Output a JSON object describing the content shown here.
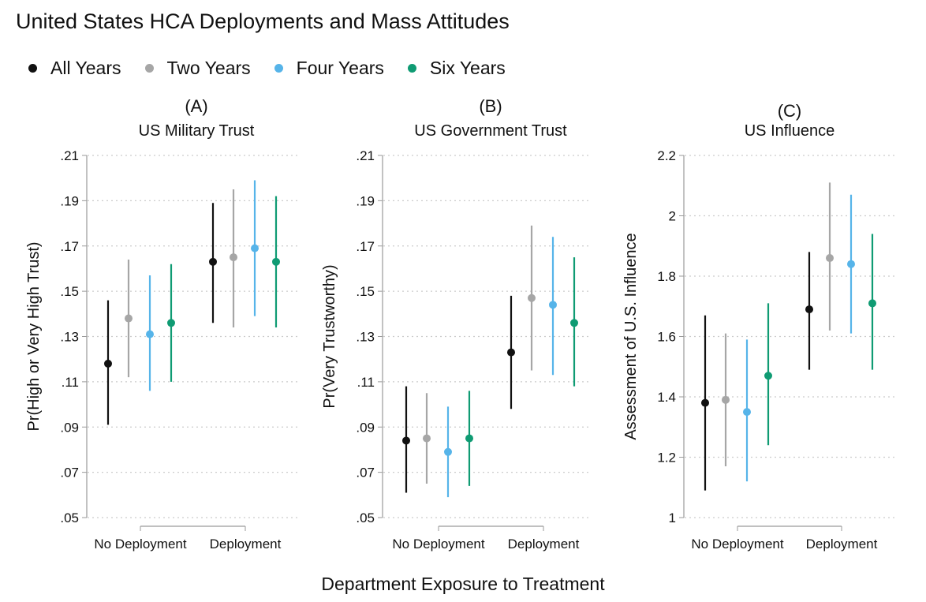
{
  "title": "United States HCA Deployments and Mass Attitudes",
  "legend": [
    {
      "name": "All Years",
      "color": "#111111"
    },
    {
      "name": "Two Years",
      "color": "#a6a6a6"
    },
    {
      "name": "Four Years",
      "color": "#56b4e9"
    },
    {
      "name": "Six Years",
      "color": "#0f9b73"
    }
  ],
  "xlabel": "Department Exposure to Treatment",
  "chart_data": [
    {
      "type": "scatter",
      "letter": "(A)",
      "title": "US Military Trust",
      "ylabel": "Pr(High or Very High Trust)",
      "categories": [
        "No Deployment",
        "Deployment"
      ],
      "ylim": [
        0.05,
        0.21
      ],
      "yticks": [
        ".05",
        ".07",
        ".09",
        ".11",
        ".13",
        ".15",
        ".17",
        ".19",
        ".21"
      ],
      "ytick_values": [
        0.05,
        0.07,
        0.09,
        0.11,
        0.13,
        0.15,
        0.17,
        0.19,
        0.21
      ],
      "series": [
        {
          "name": "All Years",
          "values": [
            0.118,
            0.163
          ],
          "lower": [
            0.091,
            0.136
          ],
          "upper": [
            0.146,
            0.189
          ]
        },
        {
          "name": "Two Years",
          "values": [
            0.138,
            0.165
          ],
          "lower": [
            0.112,
            0.134
          ],
          "upper": [
            0.164,
            0.195
          ]
        },
        {
          "name": "Four Years",
          "values": [
            0.131,
            0.169
          ],
          "lower": [
            0.106,
            0.139
          ],
          "upper": [
            0.157,
            0.199
          ]
        },
        {
          "name": "Six Years",
          "values": [
            0.136,
            0.163
          ],
          "lower": [
            0.11,
            0.134
          ],
          "upper": [
            0.162,
            0.192
          ]
        }
      ]
    },
    {
      "type": "scatter",
      "letter": "(B)",
      "title": "US Government Trust",
      "ylabel": "Pr(Very Trustworthy)",
      "categories": [
        "No Deployment",
        "Deployment"
      ],
      "ylim": [
        0.05,
        0.21
      ],
      "yticks": [
        ".05",
        ".07",
        ".09",
        ".11",
        ".13",
        ".15",
        ".17",
        ".19",
        ".21"
      ],
      "ytick_values": [
        0.05,
        0.07,
        0.09,
        0.11,
        0.13,
        0.15,
        0.17,
        0.19,
        0.21
      ],
      "series": [
        {
          "name": "All Years",
          "values": [
            0.084,
            0.123
          ],
          "lower": [
            0.061,
            0.098
          ],
          "upper": [
            0.108,
            0.148
          ]
        },
        {
          "name": "Two Years",
          "values": [
            0.085,
            0.147
          ],
          "lower": [
            0.065,
            0.115
          ],
          "upper": [
            0.105,
            0.179
          ]
        },
        {
          "name": "Four Years",
          "values": [
            0.079,
            0.144
          ],
          "lower": [
            0.059,
            0.113
          ],
          "upper": [
            0.099,
            0.174
          ]
        },
        {
          "name": "Six Years",
          "values": [
            0.085,
            0.136
          ],
          "lower": [
            0.064,
            0.108
          ],
          "upper": [
            0.106,
            0.165
          ]
        }
      ]
    },
    {
      "type": "scatter",
      "letter": "(C)",
      "title": "US Influence",
      "ylabel": "Assessment of U.S. Influence",
      "categories": [
        "No Deployment",
        "Deployment"
      ],
      "ylim": [
        1.0,
        2.2
      ],
      "yticks": [
        "1",
        "1.2",
        "1.4",
        "1.6",
        "1.8",
        "2",
        "2.2"
      ],
      "ytick_values": [
        1.0,
        1.2,
        1.4,
        1.6,
        1.8,
        2.0,
        2.2
      ],
      "series": [
        {
          "name": "All Years",
          "values": [
            1.38,
            1.69
          ],
          "lower": [
            1.09,
            1.49
          ],
          "upper": [
            1.67,
            1.88
          ]
        },
        {
          "name": "Two Years",
          "values": [
            1.39,
            1.86
          ],
          "lower": [
            1.17,
            1.62
          ],
          "upper": [
            1.61,
            2.11
          ]
        },
        {
          "name": "Four Years",
          "values": [
            1.35,
            1.84
          ],
          "lower": [
            1.12,
            1.61
          ],
          "upper": [
            1.59,
            2.07
          ]
        },
        {
          "name": "Six Years",
          "values": [
            1.47,
            1.71
          ],
          "lower": [
            1.24,
            1.49
          ],
          "upper": [
            1.71,
            1.94
          ]
        }
      ]
    }
  ]
}
